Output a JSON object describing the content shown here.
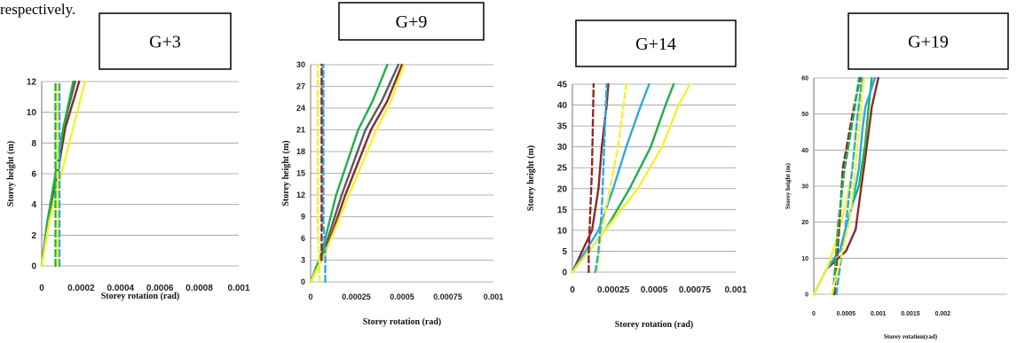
{
  "intro_text": "respectively.",
  "chart_data": [
    {
      "type": "line",
      "title": "G+3",
      "xlabel": "Storey rotation (rad)",
      "ylabel": "Storey height (m)",
      "xlim": [
        0,
        0.001
      ],
      "ylim": [
        0,
        12
      ],
      "xticks": [
        0,
        0.0002,
        0.0004,
        0.0006,
        0.0008,
        0.001
      ],
      "xtick_labels": [
        "0",
        "0.0002",
        "0.0004",
        "0.0006",
        "0.0008",
        "0.001"
      ],
      "yticks": [
        0,
        2,
        4,
        6,
        8,
        10,
        12
      ],
      "ytick_labels": [
        "0",
        "2",
        "4",
        "6",
        "8",
        "10",
        "12"
      ],
      "grid": "horizontal",
      "series": [
        {
          "color": "#8B2A2A",
          "dash": false,
          "points": [
            [
              0,
              0
            ],
            [
              3e-05,
              3
            ],
            [
              8e-05,
              6
            ],
            [
              0.00012,
              9
            ],
            [
              0.00019,
              12
            ]
          ]
        },
        {
          "color": "#5A5A5A",
          "dash": false,
          "points": [
            [
              0,
              0
            ],
            [
              3e-05,
              3
            ],
            [
              8e-05,
              6
            ],
            [
              0.00011,
              9
            ],
            [
              0.00017,
              12
            ]
          ]
        },
        {
          "color": "#1DB04B",
          "dash": false,
          "points": [
            [
              0,
              0
            ],
            [
              3e-05,
              3
            ],
            [
              7e-05,
              6
            ],
            [
              0.00011,
              9
            ],
            [
              0.00016,
              12
            ]
          ]
        },
        {
          "color": "#F2F230",
          "dash": false,
          "points": [
            [
              0,
              0
            ],
            [
              4e-05,
              3
            ],
            [
              0.0001,
              6
            ],
            [
              0.00016,
              9
            ],
            [
              0.00022,
              12
            ]
          ]
        },
        {
          "color": "#1DB04B",
          "dash": true,
          "points": [
            [
              7e-05,
              0
            ],
            [
              7e-05,
              12
            ]
          ]
        },
        {
          "color": "#2EA8E0",
          "dash": true,
          "points": [
            [
              9e-05,
              0
            ],
            [
              9e-05,
              12
            ]
          ]
        },
        {
          "color": "#F2F230",
          "dash": true,
          "points": [
            [
              8e-05,
              0
            ],
            [
              8e-05,
              12
            ]
          ]
        }
      ]
    },
    {
      "type": "line",
      "title": "G+9",
      "xlabel": "Storey rotation (rad)",
      "ylabel": "Storey height (m)",
      "xlim": [
        0,
        0.001
      ],
      "ylim": [
        0,
        30
      ],
      "xticks": [
        0,
        0.00025,
        0.0005,
        0.00075,
        0.001
      ],
      "xtick_labels": [
        "0",
        "0.00025",
        "0.0005",
        "0.00075",
        "0.001"
      ],
      "yticks": [
        0,
        3,
        6,
        9,
        12,
        15,
        18,
        21,
        24,
        27,
        30
      ],
      "ytick_labels": [
        "0",
        "3",
        "6",
        "9",
        "12",
        "15",
        "18",
        "21",
        "24",
        "27",
        "30"
      ],
      "grid": "horizontal",
      "series": [
        {
          "color": "#8B2A2A",
          "dash": false,
          "points": [
            [
              0,
              0
            ],
            [
              8e-05,
              4
            ],
            [
              0.00019,
              12
            ],
            [
              0.00033,
              21
            ],
            [
              0.00042,
              25
            ],
            [
              0.0005,
              30
            ]
          ]
        },
        {
          "color": "#5A5A5A",
          "dash": false,
          "points": [
            [
              0,
              0
            ],
            [
              7e-05,
              4
            ],
            [
              0.00017,
              12
            ],
            [
              0.0003,
              21
            ],
            [
              0.00039,
              25
            ],
            [
              0.00048,
              30
            ]
          ]
        },
        {
          "color": "#1DB04B",
          "dash": false,
          "points": [
            [
              0,
              0
            ],
            [
              6e-05,
              4
            ],
            [
              0.00014,
              12
            ],
            [
              0.00026,
              21
            ],
            [
              0.00034,
              25
            ],
            [
              0.00042,
              30
            ]
          ]
        },
        {
          "color": "#F2F230",
          "dash": false,
          "points": [
            [
              0,
              0
            ],
            [
              8e-05,
              4
            ],
            [
              0.00021,
              12
            ],
            [
              0.00036,
              21
            ],
            [
              0.00044,
              25
            ],
            [
              0.00051,
              30
            ]
          ]
        },
        {
          "color": "#2EA8E0",
          "dash": true,
          "points": [
            [
              8e-05,
              0
            ],
            [
              8e-05,
              4
            ],
            [
              7e-05,
              8
            ],
            [
              7e-05,
              30
            ]
          ]
        },
        {
          "color": "#F2F230",
          "dash": true,
          "points": [
            [
              5e-05,
              0
            ],
            [
              4e-05,
              8
            ],
            [
              4e-05,
              30
            ]
          ]
        },
        {
          "color": "#8B2A2A",
          "dash": true,
          "points": [
            [
              6e-05,
              3
            ],
            [
              6e-05,
              30
            ]
          ]
        }
      ]
    },
    {
      "type": "line",
      "title": "G+14",
      "xlabel": "Storey rotation (rad)",
      "ylabel": "Storey height (m)",
      "xlim": [
        0,
        0.001
      ],
      "ylim": [
        0,
        45
      ],
      "xticks": [
        0,
        0.00025,
        0.0005,
        0.00075,
        0.001
      ],
      "xtick_labels": [
        "0",
        "0.00025",
        "0.0005",
        "0.00075",
        "0.001"
      ],
      "yticks": [
        0,
        5,
        10,
        15,
        20,
        25,
        30,
        35,
        40,
        45
      ],
      "ytick_labels": [
        "0",
        "5",
        "10",
        "15",
        "20",
        "25",
        "30",
        "35",
        "40",
        "45"
      ],
      "grid": "horizontal",
      "series": [
        {
          "color": "#8B2A2A",
          "dash": false,
          "points": [
            [
              0,
              0
            ],
            [
              6e-05,
              5
            ],
            [
              0.00012,
              10
            ],
            [
              0.00016,
              20
            ],
            [
              0.00018,
              30
            ],
            [
              0.00021,
              40
            ],
            [
              0.00022,
              45
            ]
          ]
        },
        {
          "color": "#2EA8E0",
          "dash": false,
          "points": [
            [
              0,
              0
            ],
            [
              8e-05,
              5
            ],
            [
              0.00016,
              10
            ],
            [
              0.00025,
              20
            ],
            [
              0.00033,
              30
            ],
            [
              0.00042,
              40
            ],
            [
              0.00047,
              45
            ]
          ]
        },
        {
          "color": "#1DB04B",
          "dash": false,
          "points": [
            [
              0,
              0
            ],
            [
              0.0001,
              5
            ],
            [
              0.0002,
              10
            ],
            [
              0.00035,
              20
            ],
            [
              0.00048,
              30
            ],
            [
              0.00057,
              40
            ],
            [
              0.00062,
              45
            ]
          ]
        },
        {
          "color": "#F2F230",
          "dash": false,
          "points": [
            [
              0,
              0
            ],
            [
              0.0001,
              5
            ],
            [
              0.0002,
              10
            ],
            [
              0.0004,
              20
            ],
            [
              0.00055,
              30
            ],
            [
              0.00065,
              40
            ],
            [
              0.00072,
              45
            ]
          ]
        },
        {
          "color": "#8B2A2A",
          "dash": true,
          "points": [
            [
              0.0001,
              0
            ],
            [
              0.0001,
              5
            ],
            [
              0.00012,
              25
            ],
            [
              0.00013,
              45
            ]
          ]
        },
        {
          "color": "#F2F230",
          "dash": true,
          "points": [
            [
              0.00015,
              0
            ],
            [
              0.00018,
              10
            ],
            [
              0.00028,
              30
            ],
            [
              0.00033,
              45
            ]
          ]
        },
        {
          "color": "#2EA8E0",
          "dash": true,
          "points": [
            [
              0.00014,
              0
            ],
            [
              0.00016,
              5
            ],
            [
              0.00018,
              15
            ],
            [
              0.00021,
              45
            ]
          ]
        }
      ]
    },
    {
      "type": "line",
      "title": "G+19",
      "xlabel": "Storey rotation(rad)",
      "ylabel": "Storey height (m)",
      "xlim": [
        0,
        0.003
      ],
      "ylim": [
        0,
        60
      ],
      "xticks": [
        0,
        0.0005,
        0.001,
        0.0015,
        0.002
      ],
      "xtick_labels": [
        "0",
        "0.0005",
        "0.001",
        "0.0015",
        "0.002"
      ],
      "yticks": [
        0,
        10,
        20,
        30,
        40,
        50,
        60
      ],
      "ytick_labels": [
        "0",
        "10",
        "20",
        "30",
        "40",
        "50",
        "60"
      ],
      "grid": "horizontal",
      "series": [
        {
          "color": "#8B2A2A",
          "dash": false,
          "points": [
            [
              0,
              0
            ],
            [
              0.0002,
              7
            ],
            [
              0.0005,
              12
            ],
            [
              0.00065,
              18
            ],
            [
              0.0007,
              25
            ],
            [
              0.0008,
              38
            ],
            [
              0.00085,
              45
            ],
            [
              0.0009,
              52
            ],
            [
              0.001,
              60
            ]
          ]
        },
        {
          "color": "#1DB04B",
          "dash": false,
          "points": [
            [
              0,
              0
            ],
            [
              0.0002,
              7
            ],
            [
              0.0004,
              12
            ],
            [
              0.0006,
              25
            ],
            [
              0.0007,
              30
            ],
            [
              0.0008,
              42
            ],
            [
              0.00085,
              52
            ],
            [
              0.0009,
              60
            ]
          ]
        },
        {
          "color": "#2EA8E0",
          "dash": false,
          "points": [
            [
              0,
              0
            ],
            [
              0.0002,
              7
            ],
            [
              0.0004,
              12
            ],
            [
              0.0006,
              25
            ],
            [
              0.0007,
              35
            ],
            [
              0.00075,
              45
            ],
            [
              0.0008,
              52
            ],
            [
              0.00095,
              60
            ]
          ]
        },
        {
          "color": "#F2F230",
          "dash": false,
          "points": [
            [
              0,
              0
            ],
            [
              0.0002,
              7
            ],
            [
              0.0003,
              12
            ],
            [
              0.0005,
              25
            ],
            [
              0.0006,
              35
            ],
            [
              0.00065,
              45
            ],
            [
              0.0007,
              52
            ],
            [
              0.00075,
              60
            ]
          ]
        },
        {
          "color": "#8B2A2A",
          "dash": true,
          "points": [
            [
              0.00032,
              0
            ],
            [
              0.0004,
              20
            ],
            [
              0.00045,
              35
            ],
            [
              0.0006,
              50
            ],
            [
              0.00072,
              60
            ]
          ]
        },
        {
          "color": "#1DB04B",
          "dash": true,
          "points": [
            [
              0.0003,
              0
            ],
            [
              0.00038,
              20
            ],
            [
              0.00048,
              35
            ],
            [
              0.00062,
              50
            ],
            [
              0.0007,
              60
            ]
          ]
        },
        {
          "color": "#2EA8E0",
          "dash": true,
          "points": [
            [
              0.00035,
              0
            ],
            [
              0.0005,
              20
            ],
            [
              0.0006,
              35
            ],
            [
              0.00068,
              50
            ],
            [
              0.00075,
              60
            ]
          ]
        },
        {
          "color": "#F2F230",
          "dash": true,
          "points": [
            [
              0.00028,
              0
            ],
            [
              0.00055,
              20
            ],
            [
              0.00065,
              35
            ],
            [
              0.00072,
              50
            ],
            [
              0.00078,
              60
            ]
          ]
        }
      ]
    }
  ]
}
